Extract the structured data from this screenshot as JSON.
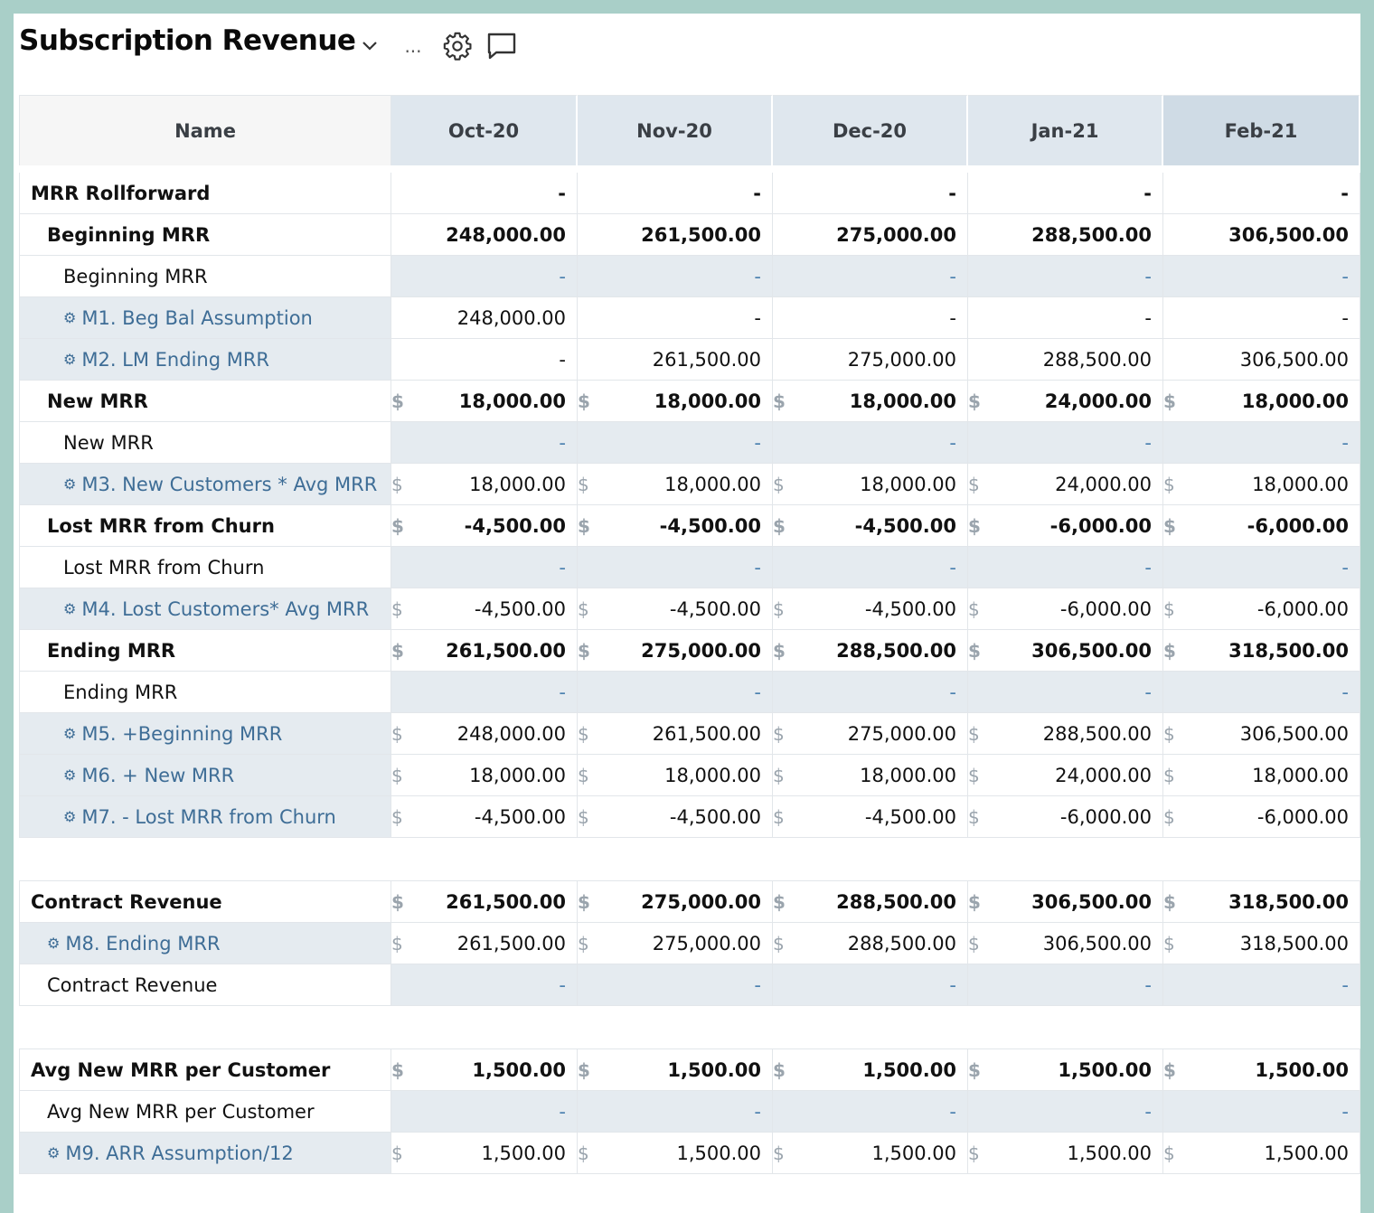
{
  "title": "Subscription Revenue",
  "header_more": "...",
  "columns": [
    "Name",
    "Oct-20",
    "Nov-20",
    "Dec-20",
    "Jan-21",
    "Feb-21"
  ],
  "rows": [
    {
      "id": "mrr-rollforward",
      "label": "MRR Rollforward",
      "level": 0,
      "bold": true,
      "values": [
        "-",
        "-",
        "-",
        "-",
        "-"
      ]
    },
    {
      "id": "beginning-mrr",
      "label": "Beginning MRR",
      "level": 1,
      "bold": true,
      "values": [
        "248,000.00",
        "261,500.00",
        "275,000.00",
        "288,500.00",
        "306,500.00"
      ]
    },
    {
      "id": "beginning-mrr-sub",
      "label": "Beginning MRR",
      "level": 2,
      "values": [
        "-",
        "-",
        "-",
        "-",
        "-"
      ]
    },
    {
      "id": "m1",
      "label": "M1. Beg Bal Assumption",
      "level": 2,
      "formula": true,
      "values": [
        "248,000.00",
        "-",
        "-",
        "-",
        "-"
      ]
    },
    {
      "id": "m2",
      "label": "M2. LM Ending MRR",
      "level": 2,
      "formula": true,
      "values": [
        "-",
        "261,500.00",
        "275,000.00",
        "288,500.00",
        "306,500.00"
      ]
    },
    {
      "id": "new-mrr",
      "label": "New MRR",
      "level": 1,
      "bold": true,
      "values": [
        "18,000.00",
        "18,000.00",
        "18,000.00",
        "24,000.00",
        "18,000.00"
      ]
    },
    {
      "id": "new-mrr-sub",
      "label": "New MRR",
      "level": 2,
      "values": [
        "-",
        "-",
        "-",
        "-",
        "-"
      ]
    },
    {
      "id": "m3",
      "label": "M3. New Customers * Avg MRR",
      "level": 2,
      "formula": true,
      "values": [
        "18,000.00",
        "18,000.00",
        "18,000.00",
        "24,000.00",
        "18,000.00"
      ]
    },
    {
      "id": "lost-mrr",
      "label": "Lost MRR from Churn",
      "level": 1,
      "bold": true,
      "values": [
        "-4,500.00",
        "-4,500.00",
        "-4,500.00",
        "-6,000.00",
        "-6,000.00"
      ]
    },
    {
      "id": "lost-mrr-sub",
      "label": "Lost MRR from Churn",
      "level": 2,
      "values": [
        "-",
        "-",
        "-",
        "-",
        "-"
      ]
    },
    {
      "id": "m4",
      "label": "M4. Lost Customers* Avg MRR",
      "level": 2,
      "formula": true,
      "values": [
        "-4,500.00",
        "-4,500.00",
        "-4,500.00",
        "-6,000.00",
        "-6,000.00"
      ]
    },
    {
      "id": "ending-mrr",
      "label": "Ending MRR",
      "level": 1,
      "bold": true,
      "values": [
        "261,500.00",
        "275,000.00",
        "288,500.00",
        "306,500.00",
        "318,500.00"
      ]
    },
    {
      "id": "ending-mrr-sub",
      "label": "Ending MRR",
      "level": 2,
      "values": [
        "-",
        "-",
        "-",
        "-",
        "-"
      ]
    },
    {
      "id": "m5",
      "label": "M5. +Beginning MRR",
      "level": 2,
      "formula": true,
      "values": [
        "248,000.00",
        "261,500.00",
        "275,000.00",
        "288,500.00",
        "306,500.00"
      ]
    },
    {
      "id": "m6",
      "label": "M6. + New MRR",
      "level": 2,
      "formula": true,
      "values": [
        "18,000.00",
        "18,000.00",
        "18,000.00",
        "24,000.00",
        "18,000.00"
      ]
    },
    {
      "id": "m7",
      "label": "M7. - Lost MRR from Churn",
      "level": 2,
      "formula": true,
      "values": [
        "-4,500.00",
        "-4,500.00",
        "-4,500.00",
        "-6,000.00",
        "-6,000.00"
      ]
    },
    {
      "id": "spacer-1",
      "spacer": true
    },
    {
      "id": "contract-revenue",
      "label": "Contract Revenue",
      "level": 0,
      "bold": true,
      "values": [
        "261,500.00",
        "275,000.00",
        "288,500.00",
        "306,500.00",
        "318,500.00"
      ]
    },
    {
      "id": "m8",
      "label": "M8. Ending MRR",
      "level": 1,
      "formula": true,
      "values": [
        "261,500.00",
        "275,000.00",
        "288,500.00",
        "306,500.00",
        "318,500.00"
      ]
    },
    {
      "id": "contract-revenue-sub",
      "label": "Contract Revenue",
      "level": 1,
      "values": [
        "-",
        "-",
        "-",
        "-",
        "-"
      ]
    },
    {
      "id": "spacer-2",
      "spacer": true
    },
    {
      "id": "avg-new-mrr",
      "label": "Avg New MRR per Customer",
      "level": 0,
      "bold": true,
      "values": [
        "1,500.00",
        "1,500.00",
        "1,500.00",
        "1,500.00",
        "1,500.00"
      ]
    },
    {
      "id": "avg-new-mrr-sub",
      "label": "Avg New MRR per Customer",
      "level": 1,
      "values": [
        "-",
        "-",
        "-",
        "-",
        "-"
      ]
    },
    {
      "id": "m9",
      "label": "M9. ARR Assumption/12",
      "level": 1,
      "formula": true,
      "values": [
        "1,500.00",
        "1,500.00",
        "1,500.00",
        "1,500.00",
        "1,500.00"
      ]
    }
  ],
  "dollar_rows": [
    "new-mrr",
    "m3",
    "lost-mrr",
    "m4",
    "ending-mrr",
    "m5",
    "m6",
    "m7",
    "contract-revenue",
    "m8",
    "avg-new-mrr",
    "m9"
  ],
  "currency_symbol": "$",
  "colors": {
    "accent": "#3e6d96",
    "header_bg": "#dfe7ee",
    "shade": "#e5ebf0",
    "frame": "#a9cfc8"
  }
}
